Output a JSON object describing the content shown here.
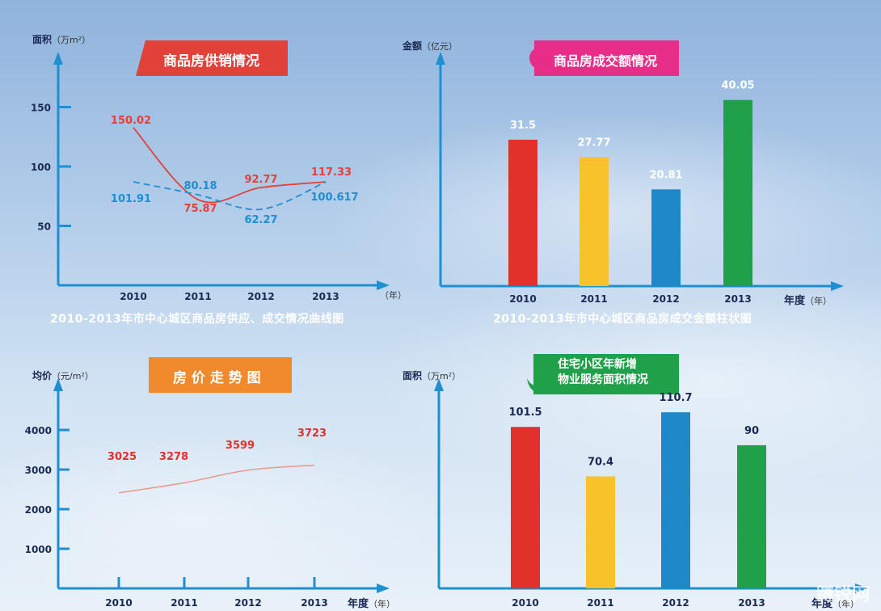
{
  "charts": [
    {
      "id": "supply",
      "banner": {
        "num": "2",
        "text": "商品房供销情况",
        "color": "#e2413a"
      },
      "ylabel": "面积",
      "yunit": "（万m²）",
      "xlabel": "",
      "xunit": "（年）",
      "caption": "2010-2013年市中心城区商品房供应、成交情况曲线图"
    },
    {
      "id": "amount",
      "banner": {
        "num": "3",
        "text": "商品房成交额情况",
        "color": "#e62e88"
      },
      "ylabel": "金额",
      "yunit": "（亿元）",
      "xlabel": "年度",
      "xunit": "（年）",
      "caption": "2010-2013年市中心城区商品房成交金额柱状图"
    },
    {
      "id": "price",
      "banner": {
        "num": "4",
        "text": "房 价 走 势 图",
        "color": "#f08a2c"
      },
      "ylabel": "均价",
      "yunit": "（元/m²）",
      "xlabel": "年度",
      "xunit": "（年）",
      "caption": ""
    },
    {
      "id": "service",
      "banner": {
        "num": "5",
        "text": "住宅小区年新增\n物业服务面积情况",
        "color": "#21a04a"
      },
      "ylabel": "面积",
      "yunit": "（万m²）",
      "xlabel": "年度",
      "xunit": "（年）",
      "caption": ""
    }
  ],
  "chart_data": [
    {
      "type": "line",
      "title": "商品房供销情况",
      "xlabel": "",
      "ylabel": "面积（万m²）",
      "x": [
        "2010",
        "2011",
        "2012",
        "2013"
      ],
      "yticks": [
        50,
        100,
        150
      ],
      "ylim": [
        0,
        190
      ],
      "grid": false,
      "series": [
        {
          "values": [
            150.02,
            75.87,
            92.77,
            117.33
          ],
          "color": "#e2413a",
          "style": "solid"
        },
        {
          "values": [
            101.91,
            80.18,
            62.27,
            100.617
          ],
          "color": "#1e8fd0",
          "style": "dashed"
        }
      ]
    },
    {
      "type": "bar",
      "title": "商品房成交额情况",
      "xlabel": "年度（年）",
      "ylabel": "金额（亿元）",
      "categories": [
        "2010",
        "2011",
        "2012",
        "2013"
      ],
      "values": [
        31.5,
        27.77,
        20.81,
        40.05
      ],
      "colors": [
        "#e2312a",
        "#f8c22a",
        "#1e88c8",
        "#21a04a"
      ],
      "ylim": [
        0,
        48
      ]
    },
    {
      "type": "line",
      "title": "房价走势图",
      "xlabel": "年度（年）",
      "ylabel": "均价（元/m²）",
      "x": [
        "2010",
        "2011",
        "2012",
        "2013"
      ],
      "yticks": [
        1000,
        2000,
        3000,
        4000
      ],
      "ylim": [
        0,
        4500
      ],
      "grid": false,
      "series": [
        {
          "values": [
            3025,
            3278,
            3599,
            3723
          ],
          "color": "#e89a8a",
          "style": "solid"
        }
      ]
    },
    {
      "type": "bar",
      "title": "住宅小区年新增物业服务面积情况",
      "xlabel": "年度（年）",
      "ylabel": "面积（万m²）",
      "categories": [
        "2010",
        "2011",
        "2012",
        "2013"
      ],
      "values": [
        101.5,
        70.4,
        110.7,
        90
      ],
      "colors": [
        "#e2312a",
        "#f8c22a",
        "#1e88c8",
        "#21a04a"
      ],
      "ylim": [
        0,
        125
      ]
    }
  ],
  "watermark": "蹲锐网"
}
